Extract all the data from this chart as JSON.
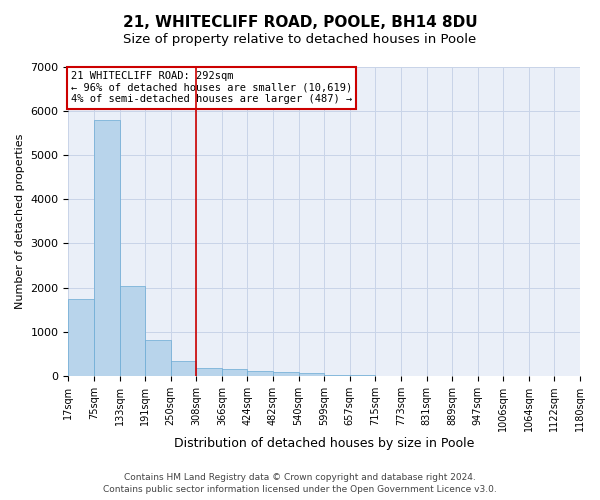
{
  "title": "21, WHITECLIFF ROAD, POOLE, BH14 8DU",
  "subtitle": "Size of property relative to detached houses in Poole",
  "xlabel": "Distribution of detached houses by size in Poole",
  "ylabel": "Number of detached properties",
  "footer_line1": "Contains HM Land Registry data © Crown copyright and database right 2024.",
  "footer_line2": "Contains public sector information licensed under the Open Government Licence v3.0.",
  "annotation_line1": "21 WHITECLIFF ROAD: 292sqm",
  "annotation_line2": "← 96% of detached houses are smaller (10,619)",
  "annotation_line3": "4% of semi-detached houses are larger (487) →",
  "bin_labels": [
    "17sqm",
    "75sqm",
    "133sqm",
    "191sqm",
    "250sqm",
    "308sqm",
    "366sqm",
    "424sqm",
    "482sqm",
    "540sqm",
    "599sqm",
    "657sqm",
    "715sqm",
    "773sqm",
    "831sqm",
    "889sqm",
    "947sqm",
    "1006sqm",
    "1064sqm",
    "1122sqm",
    "1180sqm"
  ],
  "bar_heights": [
    1750,
    5800,
    2050,
    820,
    340,
    180,
    160,
    120,
    90,
    70,
    30,
    25,
    5,
    5,
    5,
    5,
    5,
    5,
    5,
    5
  ],
  "red_line_x": 5,
  "bar_color": "#b8d4eb",
  "bar_edge_color": "#6aaad4",
  "ylim": [
    0,
    7000
  ],
  "yticks": [
    0,
    1000,
    2000,
    3000,
    4000,
    5000,
    6000,
    7000
  ],
  "grid_color": "#c8d4e8",
  "bg_color": "#eaeff8",
  "title_fontsize": 11,
  "subtitle_fontsize": 9.5,
  "xlabel_fontsize": 9,
  "ylabel_fontsize": 8,
  "tick_fontsize": 7,
  "annotation_fontsize": 7.5,
  "footer_fontsize": 6.5,
  "annotation_box_edgecolor": "#cc0000",
  "red_line_color": "#cc0000",
  "figsize": [
    6.0,
    5.0
  ],
  "dpi": 100
}
